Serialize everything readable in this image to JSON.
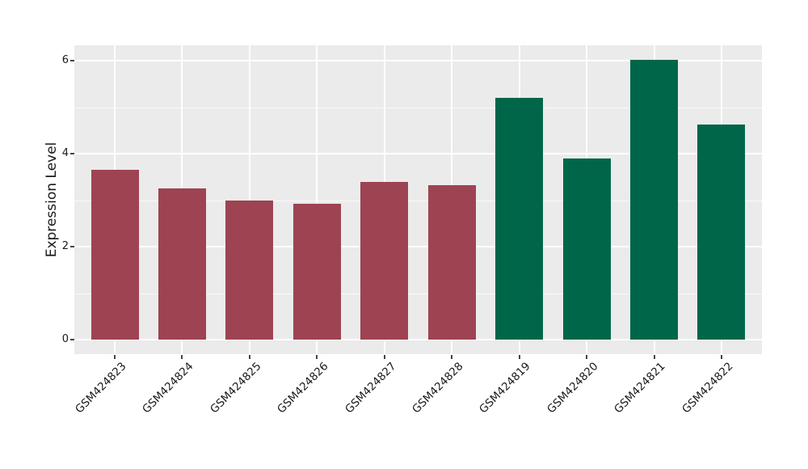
{
  "chart_data": {
    "type": "bar",
    "title": "",
    "xlabel": "",
    "ylabel": "Expression Level",
    "categories": [
      "GSM424823",
      "GSM424824",
      "GSM424825",
      "GSM424826",
      "GSM424827",
      "GSM424828",
      "GSM424819",
      "GSM424820",
      "GSM424821",
      "GSM424822"
    ],
    "values": [
      3.65,
      3.26,
      2.99,
      2.93,
      3.39,
      3.33,
      5.2,
      3.9,
      6.02,
      4.62
    ],
    "bar_colors": [
      "#9e4352",
      "#9e4352",
      "#9e4352",
      "#9e4352",
      "#9e4352",
      "#9e4352",
      "#006649",
      "#006649",
      "#006649",
      "#006649"
    ],
    "group_colors": {
      "left-group": "#9e4352",
      "right-group": "#006649"
    },
    "yticks": [
      0,
      2,
      4,
      6
    ],
    "minor_yticks": [
      1,
      3,
      5
    ],
    "ylim": [
      -0.31,
      6.33
    ],
    "grid": true,
    "legend": "none",
    "plot_background": "#ebebeb",
    "gridline_color": "#ffffff"
  }
}
